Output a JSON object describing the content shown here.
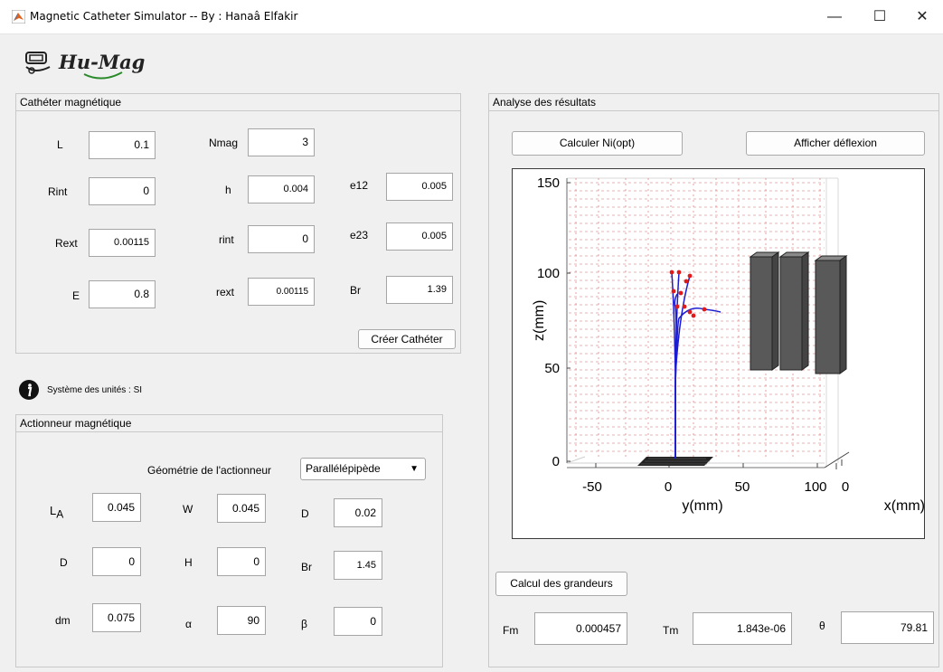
{
  "window": {
    "title": "Magnetic Catheter Simulator -- By : Hanaâ Elfakir",
    "minimize": "—",
    "maximize": "☐",
    "close": "✕"
  },
  "logo": {
    "text": "Hu-Mag"
  },
  "catheter": {
    "title": "Cathéter magnétique",
    "fields": {
      "L": {
        "label": "L",
        "value": "0.1"
      },
      "Nmag": {
        "label": "Nmag",
        "value": "3"
      },
      "Rint": {
        "label": "Rint",
        "value": "0"
      },
      "h": {
        "label": "h",
        "value": "0.004"
      },
      "e12": {
        "label": "e12",
        "value": "0.005"
      },
      "Rext": {
        "label": "Rext",
        "value": "0.00115"
      },
      "rint": {
        "label": "rint",
        "value": "0"
      },
      "e23": {
        "label": "e23",
        "value": "0.005"
      },
      "E": {
        "label": "E",
        "value": "0.8"
      },
      "rext": {
        "label": "rext",
        "value": "0.00115"
      },
      "Br": {
        "label": "Br",
        "value": "1.39"
      }
    },
    "create_button": "Créer Cathéter"
  },
  "units_note": "Système des unités : SI",
  "actuator": {
    "title": "Actionneur magnétique",
    "geometry_label": "Géométrie de l'actionneur",
    "geometry_value": "Parallélépipède",
    "fields": {
      "LA": {
        "label": "L",
        "sub": "A",
        "value": "0.045"
      },
      "W": {
        "label": "W",
        "value": "0.045"
      },
      "D1": {
        "label": "D",
        "value": "0.02"
      },
      "D2": {
        "label": "D",
        "value": "0"
      },
      "H": {
        "label": "H",
        "value": "0"
      },
      "Br": {
        "label": "Br",
        "value": "1.45"
      },
      "dm": {
        "label": "dm",
        "value": "0.075"
      },
      "alpha": {
        "label": "α",
        "value": "90"
      },
      "beta": {
        "label": "β",
        "value": "0"
      }
    }
  },
  "analysis": {
    "title": "Analyse des résultats",
    "btn_ni": "Calculer Ni(opt)",
    "btn_deflect": "Afficher déflexion",
    "btn_calc": "Calcul des grandeurs",
    "Fm": {
      "label": "Fm",
      "value": "0.000457"
    },
    "Tm": {
      "label": "Tm",
      "value": "1.843e-06"
    },
    "theta": {
      "label": "θ",
      "value": "79.81"
    }
  },
  "plot": {
    "zlabel": "z(mm)",
    "ylabel": "y(mm)",
    "xlabel": "x(mm)",
    "z_ticks": [
      "150",
      "100",
      "50",
      "0"
    ],
    "y_ticks": [
      "-50",
      "0",
      "50",
      "100"
    ],
    "x_ticks": [
      "0"
    ],
    "grid_color": "#e06060",
    "curve_color": "#1c1cd0",
    "marker_color": "#e01a1a",
    "magnet_color": "#555555"
  },
  "chart_data": {
    "type": "line",
    "xlabel": "x(mm)",
    "ylabel": "y(mm)",
    "zlabel": "z(mm)",
    "zlim": [
      0,
      150
    ],
    "ylim": [
      -75,
      110
    ],
    "z_ticks": [
      0,
      50,
      100,
      150
    ],
    "y_ticks": [
      -50,
      0,
      50,
      100
    ]
  }
}
